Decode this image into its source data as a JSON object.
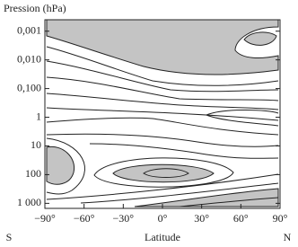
{
  "chart_data": {
    "type": "contour",
    "title": "Pression (hPa)",
    "x_label": "Latitude",
    "x_left_label": "S",
    "x_right_label": "N",
    "xlim": [
      -90,
      90
    ],
    "xticks": [
      {
        "value": -90,
        "label": "−90°"
      },
      {
        "value": -60,
        "label": "−60°"
      },
      {
        "value": -30,
        "label": "−30°"
      },
      {
        "value": 0,
        "label": "0°"
      },
      {
        "value": 30,
        "label": "30°"
      },
      {
        "value": 60,
        "label": "60°"
      },
      {
        "value": 90,
        "label": "90°"
      }
    ],
    "ylim": [
      1500,
      0.0004
    ],
    "log_y": true,
    "yticks": [
      {
        "value": 0.001,
        "label": "0,001"
      },
      {
        "value": 0.01,
        "label": "0,010"
      },
      {
        "value": 0.1,
        "label": "0,100"
      },
      1,
      10,
      100,
      {
        "value": 1000,
        "label": "1 000"
      }
    ]
  }
}
